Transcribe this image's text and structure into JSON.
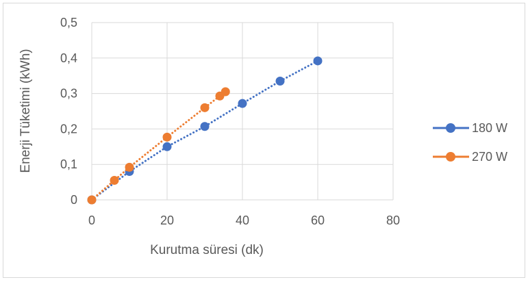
{
  "chart_data": {
    "type": "line",
    "title": "",
    "xlabel": "Kurutma süresi (dk)",
    "ylabel": "Enerji Tüketimi (kWh)",
    "xlim": [
      0,
      80
    ],
    "ylim": [
      0,
      0.5
    ],
    "x_ticks": [
      "0",
      "20",
      "40",
      "60",
      "80"
    ],
    "y_ticks": [
      "0",
      "0,1",
      "0,2",
      "0,3",
      "0,4",
      "0,5"
    ],
    "grid": "horizontal and vertical",
    "legend_position": "right",
    "series": [
      {
        "name": "180 W",
        "color": "#4472c4",
        "line_style": "dotted",
        "marker": "circle",
        "points": [
          {
            "x": 0,
            "y": 0
          },
          {
            "x": 10,
            "y": 0.08
          },
          {
            "x": 20,
            "y": 0.15
          },
          {
            "x": 30,
            "y": 0.207
          },
          {
            "x": 40,
            "y": 0.272
          },
          {
            "x": 50,
            "y": 0.335
          },
          {
            "x": 60,
            "y": 0.392
          }
        ]
      },
      {
        "name": "270 W",
        "color": "#ed7d31",
        "line_style": "dotted",
        "marker": "circle",
        "points": [
          {
            "x": 0,
            "y": 0
          },
          {
            "x": 6,
            "y": 0.055
          },
          {
            "x": 10,
            "y": 0.092
          },
          {
            "x": 20,
            "y": 0.177
          },
          {
            "x": 30,
            "y": 0.26
          },
          {
            "x": 34,
            "y": 0.293
          },
          {
            "x": 35.5,
            "y": 0.305
          }
        ]
      }
    ]
  }
}
